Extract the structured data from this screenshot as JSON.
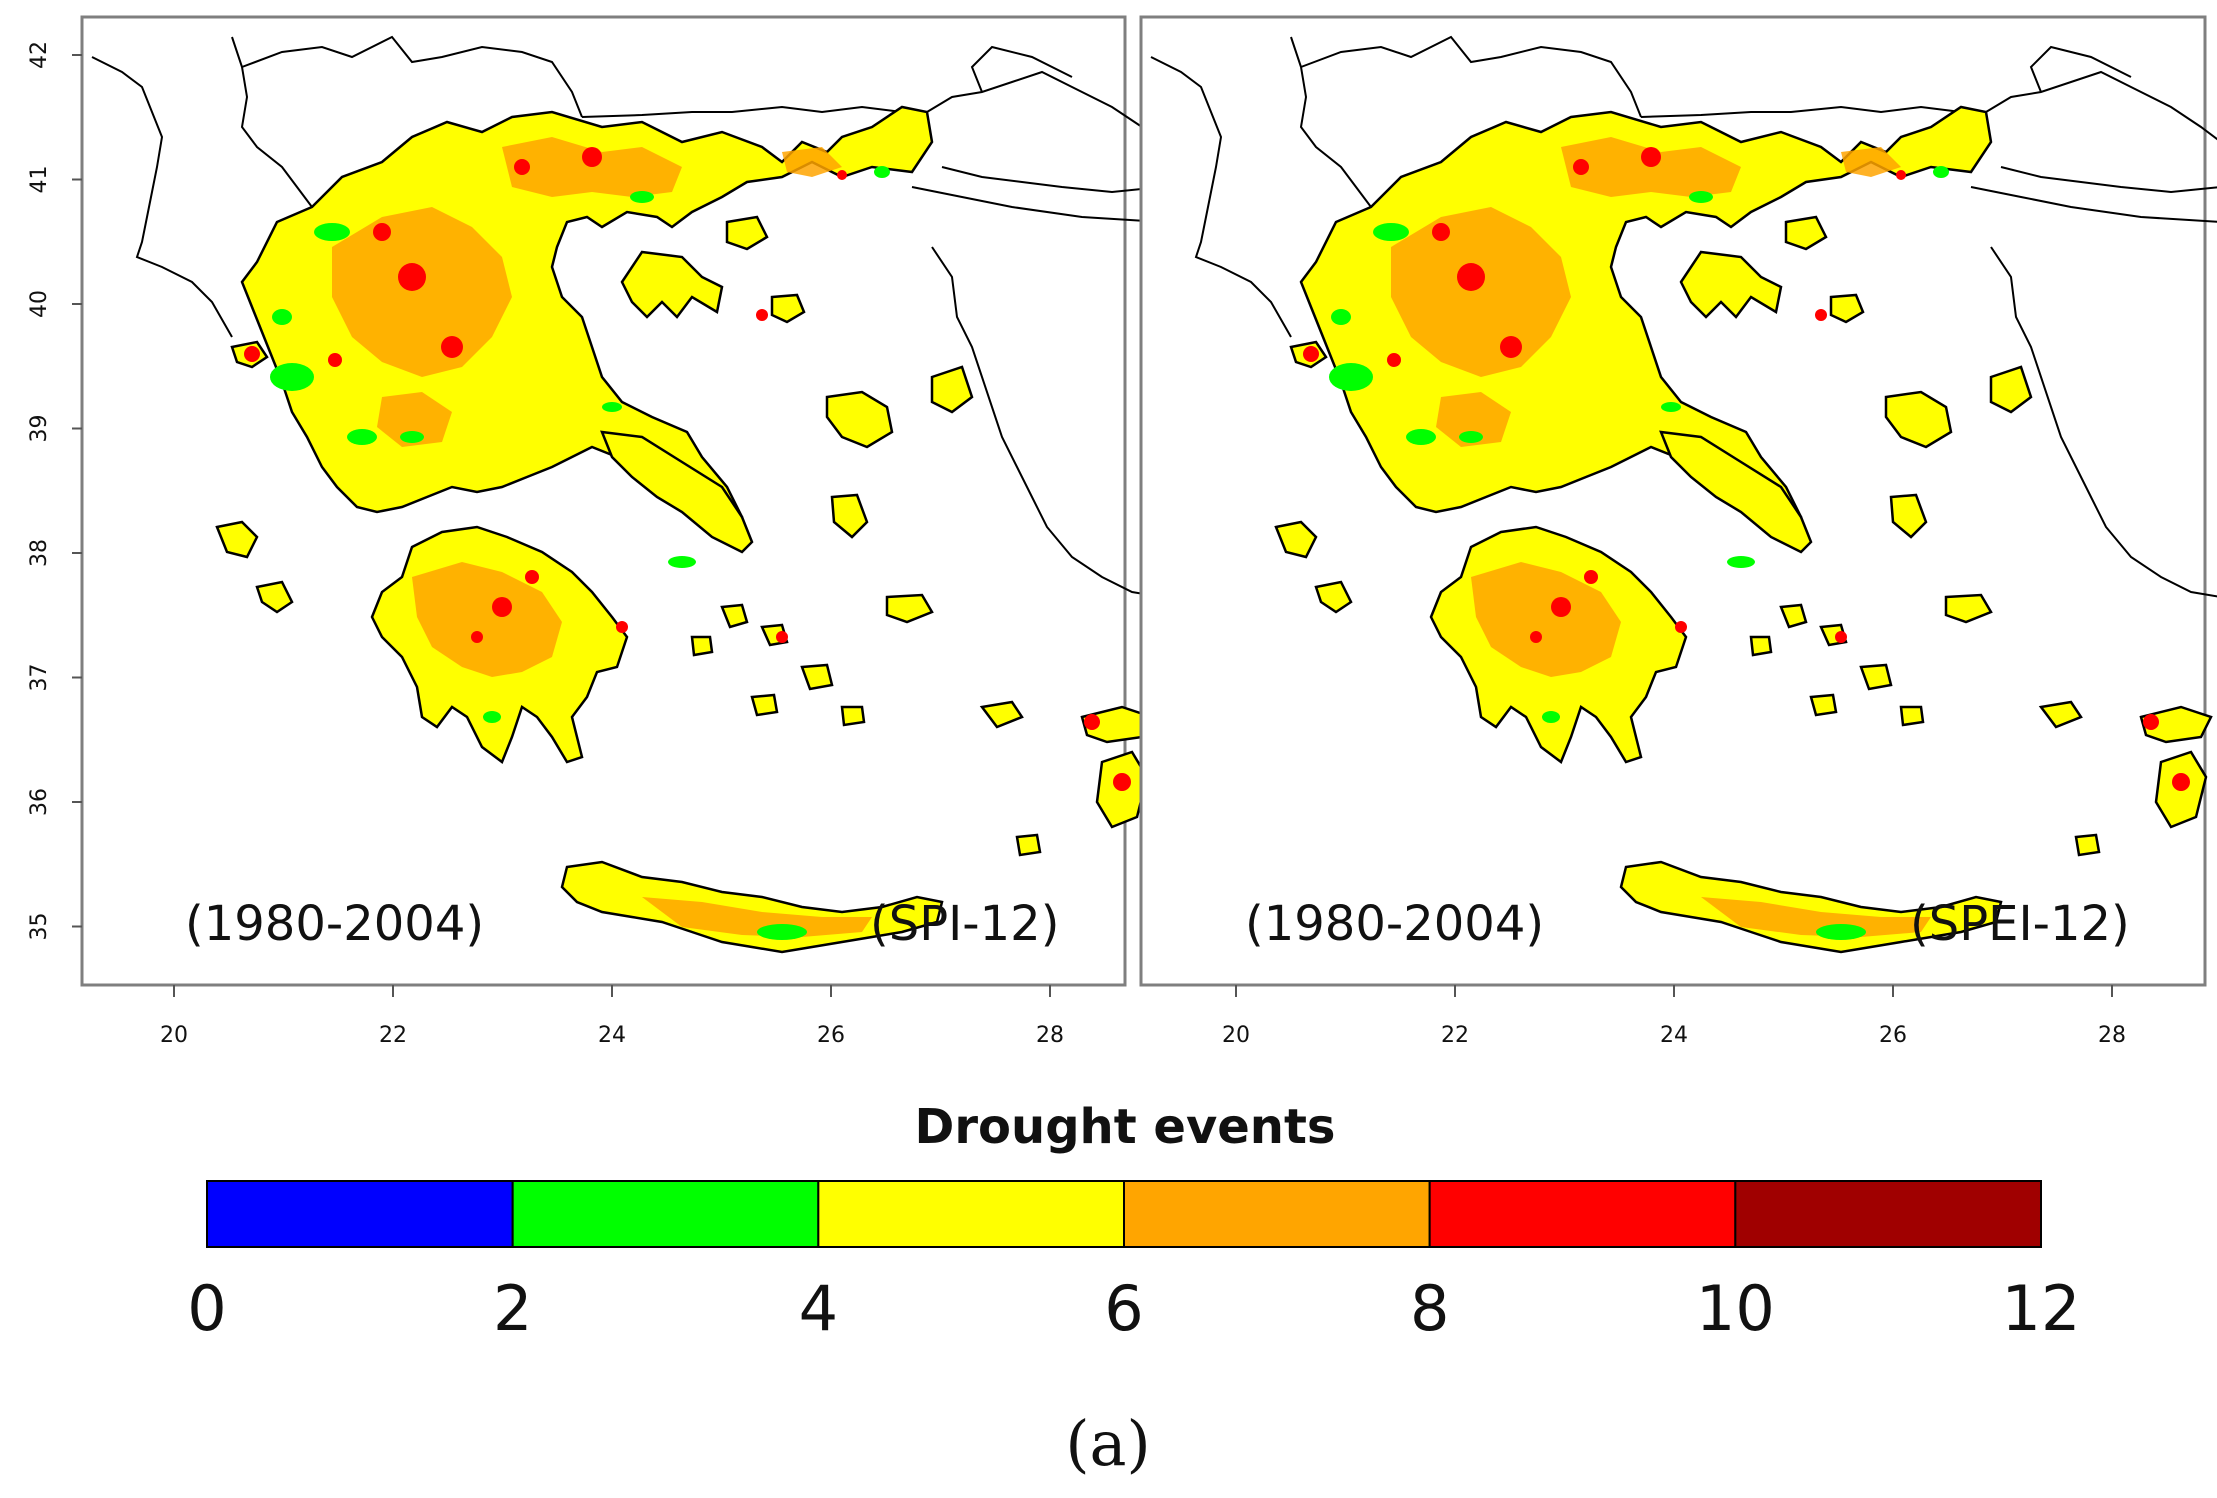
{
  "figure_label": "(a)",
  "legend": {
    "title": "Drought events",
    "bins": [
      {
        "from": 0,
        "to": 2,
        "color": "#0000ff"
      },
      {
        "from": 2,
        "to": 4,
        "color": "#00ff00"
      },
      {
        "from": 4,
        "to": 6,
        "color": "#ffff00"
      },
      {
        "from": 6,
        "to": 8,
        "color": "#ffa500"
      },
      {
        "from": 8,
        "to": 10,
        "color": "#ff0000"
      },
      {
        "from": 10,
        "to": 12,
        "color": "#a00000"
      }
    ],
    "tick_labels": [
      "0",
      "2",
      "4",
      "6",
      "8",
      "10",
      "12"
    ]
  },
  "maps": [
    {
      "id": "spi",
      "period_label": "(1980-2004)",
      "index_label": "(SPI-12)",
      "lat_ticks": [
        "42",
        "41",
        "40",
        "39",
        "38",
        "37",
        "36",
        "35"
      ],
      "lon_ticks": [
        "20",
        "22",
        "24",
        "26",
        "28"
      ],
      "region": "Greece"
    },
    {
      "id": "spei",
      "period_label": "(1980-2004)",
      "index_label": "(SPEI-12)",
      "lon_ticks": [
        "20",
        "22",
        "24",
        "26",
        "28"
      ],
      "region": "Greece"
    }
  ],
  "colors": {
    "frame": "#7f7f7f",
    "border": "#000000",
    "land_base": "#ffff00"
  }
}
